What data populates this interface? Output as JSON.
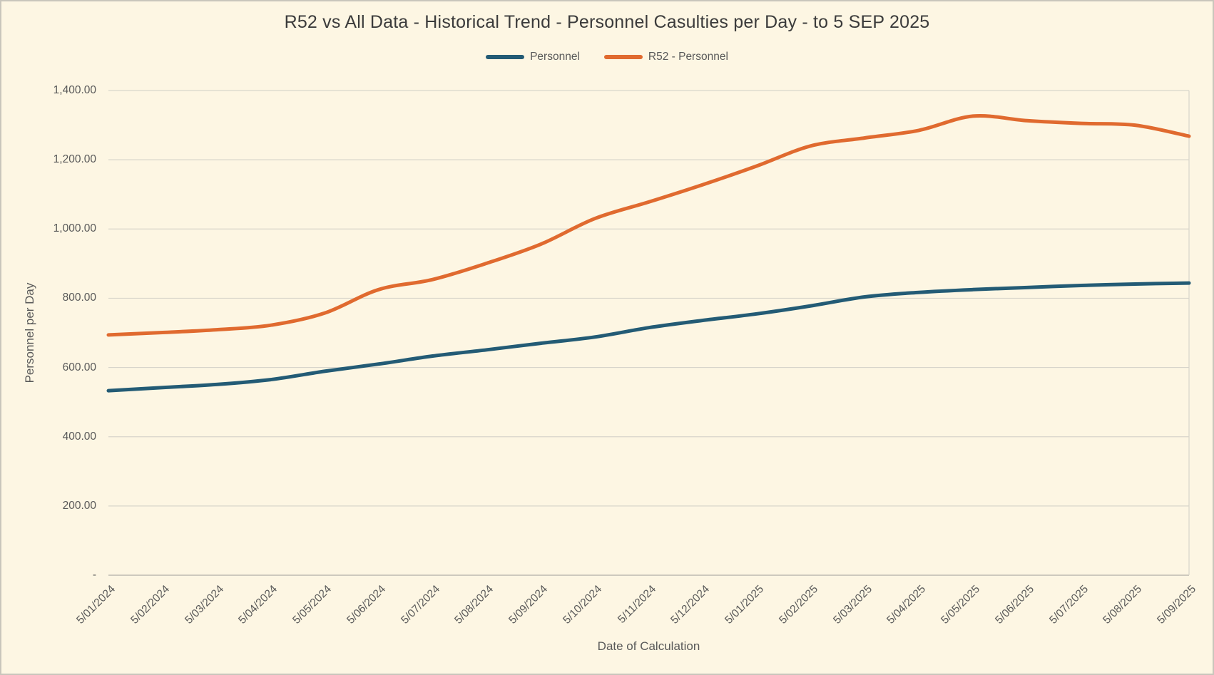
{
  "title": "R52 vs All Data - Historical Trend - Personnel Casulties per Day - to 5 SEP 2025",
  "axes": {
    "x_title": "Date of Calculation",
    "y_title": "Personnel per Day"
  },
  "colors": {
    "background": "#FDF6E3",
    "gridline": "#d8d5cb",
    "axis_line": "#bdbab1",
    "text": "#595959",
    "title_text": "#3b3b3b",
    "series_personnel": "#235B75",
    "series_r52": "#E06A2F"
  },
  "legend": {
    "position": "top",
    "items": [
      {
        "label": "Personnel",
        "color": "#235B75"
      },
      {
        "label": "R52 - Personnel",
        "color": "#E06A2F"
      }
    ]
  },
  "chart_data": {
    "type": "line",
    "title": "R52 vs All Data - Historical Trend - Personnel Casulties per Day - to 5 SEP 2025",
    "xlabel": "Date of Calculation",
    "ylabel": "Personnel per Day",
    "ylim": [
      0,
      1400
    ],
    "grid": "horizontal",
    "legend_position": "top",
    "y_ticks": [
      0,
      200,
      400,
      600,
      800,
      1000,
      1200,
      1400
    ],
    "y_tick_labels": [
      "-",
      "200.00",
      "400.00",
      "600.00",
      "800.00",
      "1,000.00",
      "1,200.00",
      "1,400.00"
    ],
    "x": [
      "5/01/2024",
      "5/02/2024",
      "5/03/2024",
      "5/04/2024",
      "5/05/2024",
      "5/06/2024",
      "5/07/2024",
      "5/08/2024",
      "5/09/2024",
      "5/10/2024",
      "5/11/2024",
      "5/12/2024",
      "5/01/2025",
      "5/02/2025",
      "5/03/2025",
      "5/04/2025",
      "5/05/2025",
      "5/06/2025",
      "5/07/2025",
      "5/08/2025",
      "5/09/2025"
    ],
    "series": [
      {
        "name": "Personnel",
        "color": "#235B75",
        "values": [
          533,
          542,
          551,
          565,
          589,
          610,
          633,
          651,
          670,
          688,
          715,
          736,
          755,
          778,
          804,
          817,
          825,
          831,
          837,
          841,
          844
        ]
      },
      {
        "name": "R52 - Personnel",
        "color": "#E06A2F",
        "values": [
          694,
          701,
          709,
          722,
          757,
          825,
          854,
          901,
          956,
          1030,
          1078,
          1128,
          1182,
          1240,
          1263,
          1285,
          1326,
          1313,
          1305,
          1300,
          1268
        ]
      }
    ]
  }
}
